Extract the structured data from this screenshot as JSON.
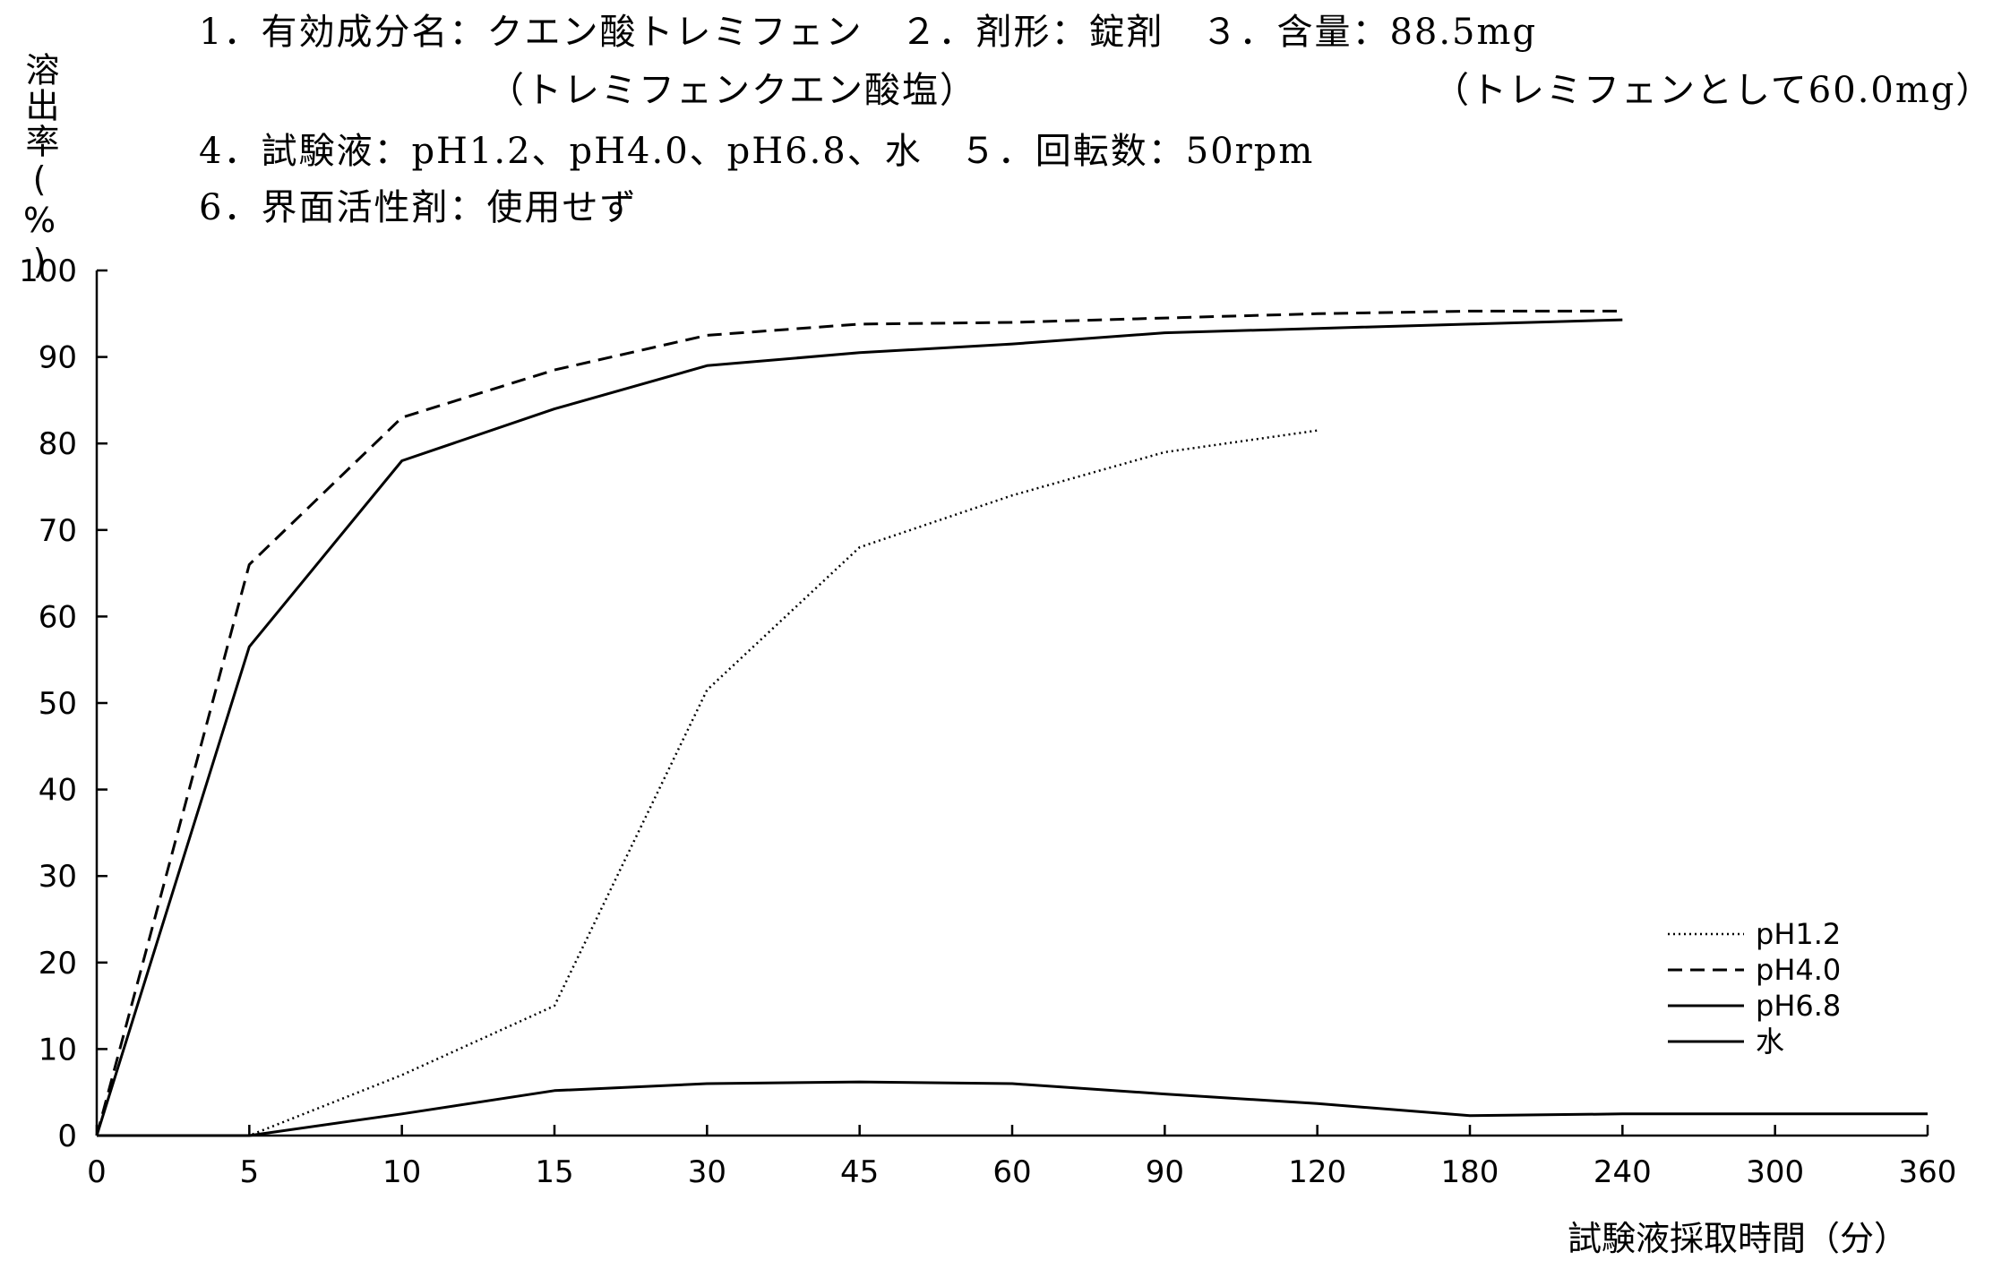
{
  "header": {
    "line1": "1．有効成分名：クエン酸トレミフェン　２．剤形：錠剤　３．含量：88.5mg",
    "line2_left": "（トレミフェンクエン酸塩）",
    "line2_right": "（トレミフェンとして60.0mg）",
    "line3": "4．試験液：pH1.2、pH4.0、pH6.8、水　５．回転数：50rpm",
    "line4": "6．界面活性剤：使用せず"
  },
  "chart_data": {
    "type": "line",
    "ylabel": "溶出率(%)",
    "xlabel": "試験液採取時間（分）",
    "categories": [
      "0",
      "5",
      "10",
      "15",
      "30",
      "45",
      "60",
      "90",
      "120",
      "180",
      "240",
      "300",
      "360"
    ],
    "yticks": [
      "0",
      "10",
      "20",
      "30",
      "40",
      "50",
      "60",
      "70",
      "80",
      "90",
      "100"
    ],
    "ylim": [
      0,
      100
    ],
    "grid": false,
    "legend_position": "bottom-right",
    "series": [
      {
        "name": "pH1.2",
        "style": "dotted",
        "x": [
          "0",
          "5",
          "10",
          "15",
          "30",
          "45",
          "60",
          "90",
          "120"
        ],
        "values": [
          0,
          0,
          7,
          15,
          51.5,
          68,
          74,
          79,
          81.5
        ]
      },
      {
        "name": "pH4.0",
        "style": "dashed",
        "x": [
          "0",
          "5",
          "10",
          "15",
          "30",
          "45",
          "60",
          "90",
          "120",
          "180",
          "240"
        ],
        "values": [
          0,
          66,
          83,
          88.5,
          92.5,
          93.8,
          94,
          94.5,
          95,
          95.3,
          95.3
        ]
      },
      {
        "name": "pH6.8",
        "style": "solid",
        "x": [
          "0",
          "5",
          "10",
          "15",
          "30",
          "45",
          "60",
          "90",
          "120",
          "180",
          "240"
        ],
        "values": [
          0,
          56.5,
          78,
          84,
          89,
          90.5,
          91.5,
          92.8,
          93.3,
          93.8,
          94.3
        ]
      },
      {
        "name": "水",
        "style": "solid",
        "x": [
          "0",
          "5",
          "10",
          "15",
          "30",
          "45",
          "60",
          "90",
          "120",
          "180",
          "240",
          "300",
          "360"
        ],
        "values": [
          0,
          0,
          2.5,
          5.2,
          6,
          6.2,
          6,
          4.8,
          3.7,
          2.3,
          2.5,
          2.5,
          2.5
        ]
      }
    ]
  }
}
